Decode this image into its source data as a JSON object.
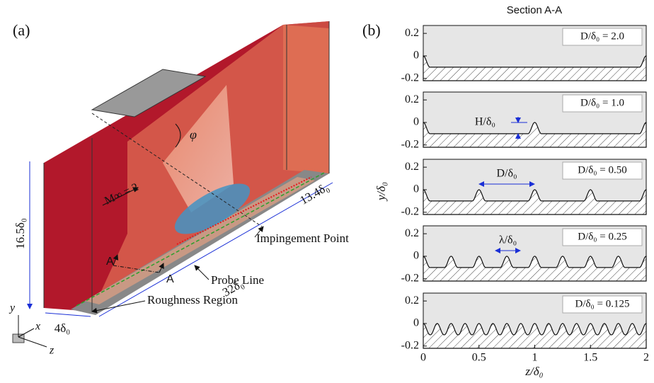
{
  "panel_a": {
    "label": "(a)",
    "height": "16.5δ₀",
    "width": "4δ₀",
    "length": "32δ₀",
    "strip": "13.4δ₀",
    "mach": "M∞ = 2",
    "angle": "φ",
    "section_start": "A",
    "section_end": "A",
    "impingement": "Impingement Point",
    "probe": "Probe Line",
    "roughness": "Roughness Region",
    "axis_y": "y",
    "axis_x": "x",
    "axis_z": "z"
  },
  "panel_b": {
    "label": "(b)",
    "title": "Section A-A",
    "ylabel": "y/δ₀",
    "xlabel": "z/δ₀"
  },
  "chart_data": [
    {
      "type": "profile",
      "d": 2,
      "d_label": "D/δ₀ = 2.0",
      "xlim": [
        0,
        2
      ],
      "ylim": [
        -0.22,
        0.27
      ],
      "yticks": [
        -0.2,
        0,
        0.2
      ]
    },
    {
      "type": "profile",
      "d": 1,
      "d_label": "D/δ₀ = 1.0",
      "annotation": "H/δ₀",
      "xlim": [
        0,
        2
      ],
      "ylim": [
        -0.22,
        0.27
      ],
      "yticks": [
        -0.2,
        0,
        0.2
      ]
    },
    {
      "type": "profile",
      "d": 0.5,
      "d_label": "D/δ₀ = 0.50",
      "annotation": "D/δ₀",
      "xlim": [
        0,
        2
      ],
      "ylim": [
        -0.22,
        0.27
      ],
      "yticks": [
        -0.2,
        0,
        0.2
      ]
    },
    {
      "type": "profile",
      "d": 0.25,
      "d_label": "D/δ₀ = 0.25",
      "annotation": "λ/δ₀",
      "xlim": [
        0,
        2
      ],
      "ylim": [
        -0.22,
        0.27
      ],
      "yticks": [
        -0.2,
        0,
        0.2
      ]
    },
    {
      "type": "profile",
      "d": 0.125,
      "d_label": "D/δ₀ = 0.125",
      "xlim": [
        0,
        2
      ],
      "ylim": [
        -0.22,
        0.27
      ],
      "yticks": [
        -0.2,
        0,
        0.2
      ],
      "xticks": [
        0,
        0.5,
        1,
        1.5,
        2
      ]
    }
  ]
}
